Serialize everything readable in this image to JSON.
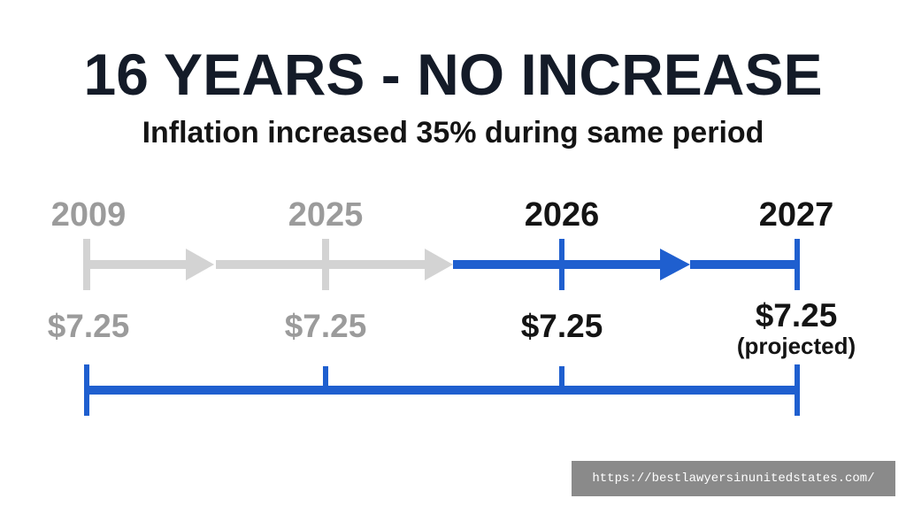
{
  "header": {
    "title": "16 YEARS - NO INCREASE",
    "subtitle": "Inflation increased 35% during same period"
  },
  "timeline": {
    "points": [
      {
        "year": "2009",
        "wage": "$7.25",
        "note": "",
        "status": "past"
      },
      {
        "year": "2025",
        "wage": "$7.25",
        "note": "",
        "status": "past"
      },
      {
        "year": "2026",
        "wage": "$7.25",
        "note": "",
        "status": "current"
      },
      {
        "year": "2027",
        "wage": "$7.25",
        "note": "(projected)",
        "status": "future"
      }
    ]
  },
  "colors": {
    "title": "#141b28",
    "past": "#9b9b9b",
    "current": "#141414",
    "accent_blue": "#1f5fcf",
    "arrow_gray": "#d3d3d3"
  },
  "watermark": {
    "text": "https://bestlawyersinunitedstates.com/"
  }
}
